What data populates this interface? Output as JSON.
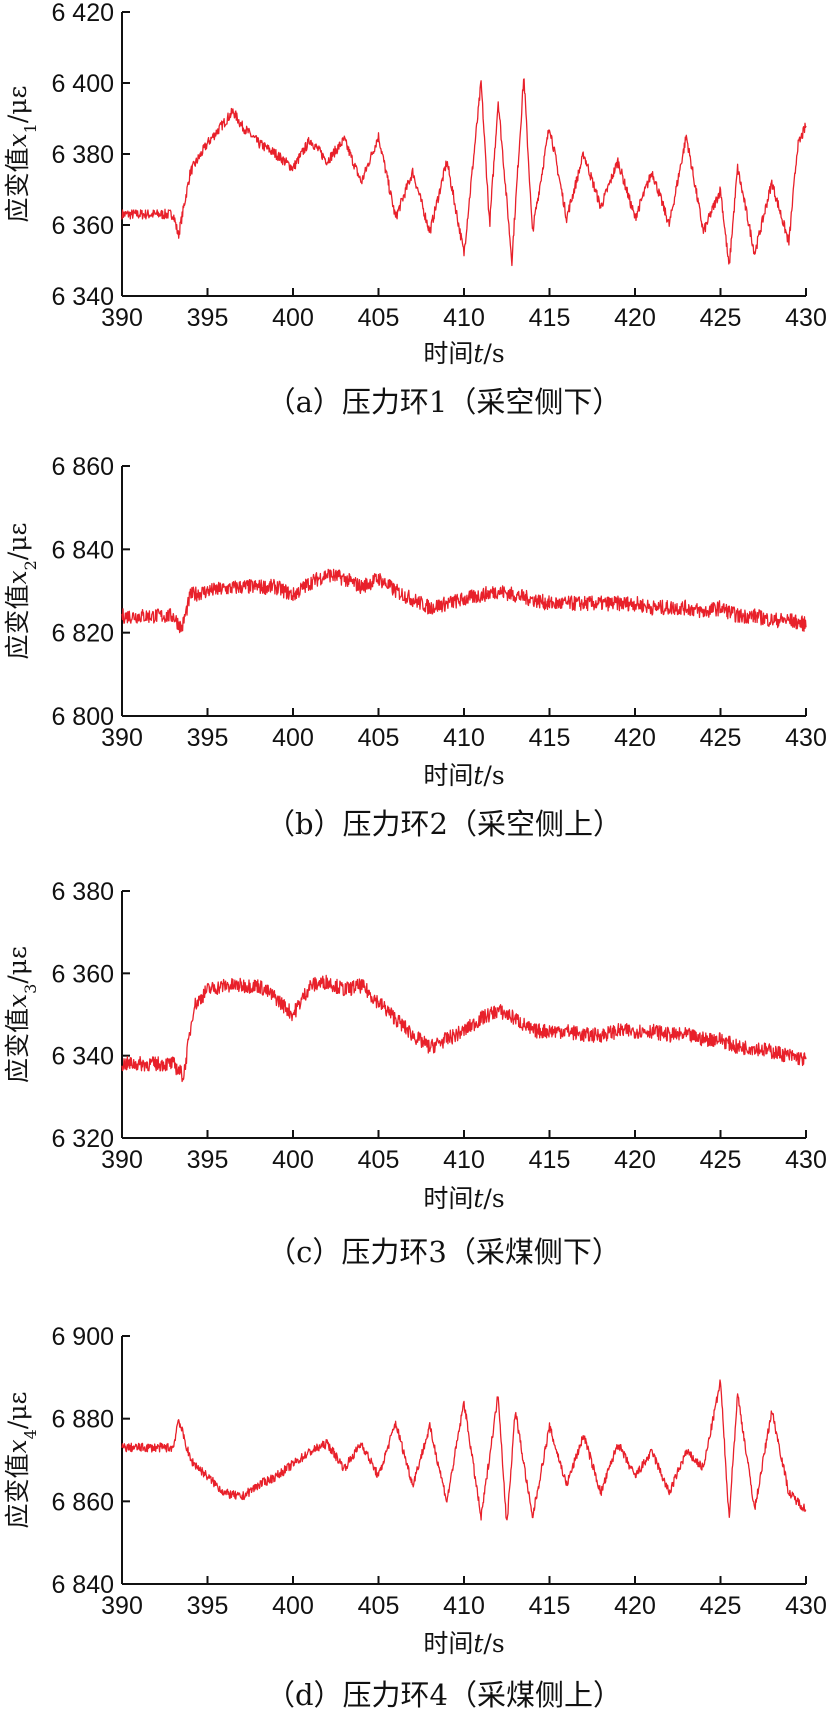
{
  "style": {
    "line_color": "#e8202a",
    "axis_color": "#111111"
  },
  "chart_data": [
    {
      "type": "line",
      "panel": "a",
      "caption": "（a）压力环1（采空侧下）",
      "xlabel": "时间t/s",
      "ylabel": "应变值x1/με",
      "xlim": [
        390,
        430
      ],
      "ylim": [
        6340,
        6420
      ],
      "xticks": [
        "390",
        "395",
        "400",
        "405",
        "410",
        "415",
        "420",
        "425",
        "430"
      ],
      "yticks": [
        "6 340",
        "6 360",
        "6 380",
        "6 400",
        "6 420"
      ],
      "series": [
        {
          "x": [
            390,
            393,
            393.3,
            394,
            395,
            396,
            396.5,
            397,
            398,
            399,
            400,
            401,
            402,
            403,
            404,
            405,
            406,
            407,
            408,
            409,
            410,
            411,
            411.5,
            412,
            412.8,
            413.5,
            414,
            415,
            416,
            417,
            418,
            419,
            420,
            421,
            422,
            423,
            424,
            425,
            425.5,
            426,
            427,
            428,
            429,
            429.5,
            430
          ],
          "y": [
            6363,
            6363,
            6357,
            6375,
            6383,
            6389,
            6392,
            6388,
            6383,
            6380,
            6376,
            6384,
            6378,
            6384,
            6372,
            6385,
            6362,
            6375,
            6358,
            6378,
            6352,
            6400,
            6360,
            6395,
            6350,
            6402,
            6358,
            6388,
            6362,
            6380,
            6365,
            6378,
            6362,
            6375,
            6360,
            6385,
            6358,
            6370,
            6348,
            6376,
            6352,
            6372,
            6355,
            6382,
            6388
          ]
        }
      ]
    },
    {
      "type": "line",
      "panel": "b",
      "caption": "（b）压力环2（采空侧上）",
      "xlabel": "时间t/s",
      "ylabel": "应变值x2/με",
      "xlim": [
        390,
        430
      ],
      "ylim": [
        6800,
        6860
      ],
      "xticks": [
        "390",
        "395",
        "400",
        "405",
        "410",
        "415",
        "420",
        "425",
        "430"
      ],
      "yticks": [
        "6 800",
        "6 820",
        "6 840",
        "6 860"
      ],
      "series": [
        {
          "x": [
            390,
            393,
            393.5,
            394,
            395,
            397,
            399,
            400,
            401,
            402,
            403,
            404,
            405,
            406,
            407,
            408,
            409,
            410,
            411,
            412,
            413,
            414,
            415,
            416,
            417,
            418,
            419,
            420,
            421,
            422,
            423,
            424,
            425,
            426,
            427,
            428,
            429,
            430
          ],
          "y": [
            6824,
            6824,
            6821,
            6829,
            6830,
            6831,
            6831,
            6829,
            6832,
            6834,
            6833,
            6831,
            6833,
            6830,
            6828,
            6826,
            6827,
            6828,
            6829,
            6830,
            6829,
            6828,
            6827,
            6827,
            6827,
            6827,
            6827,
            6827,
            6826,
            6826,
            6826,
            6825,
            6826,
            6824,
            6824,
            6823,
            6823,
            6822
          ]
        }
      ]
    },
    {
      "type": "line",
      "panel": "c",
      "caption": "（c）压力环3（采煤侧下）",
      "xlabel": "时间t/s",
      "ylabel": "应变值x3/με",
      "xlim": [
        390,
        430
      ],
      "ylim": [
        6320,
        6380
      ],
      "xticks": [
        "390",
        "395",
        "400",
        "405",
        "410",
        "415",
        "420",
        "425",
        "430"
      ],
      "yticks": [
        "6 320",
        "6 340",
        "6 360",
        "6 380"
      ],
      "series": [
        {
          "x": [
            390,
            393,
            393.6,
            394.2,
            395,
            396,
            397,
            398,
            399,
            400,
            401,
            402,
            403,
            404,
            405,
            406,
            407,
            408,
            409,
            410,
            411,
            412,
            413,
            414,
            415,
            416,
            417,
            418,
            419,
            420,
            421,
            422,
            423,
            424,
            425,
            426,
            427,
            428,
            429,
            430
          ],
          "y": [
            6338,
            6338,
            6335,
            6352,
            6356,
            6357,
            6357,
            6357,
            6354,
            6350,
            6357,
            6358,
            6356,
            6357,
            6353,
            6349,
            6345,
            6342,
            6344,
            6346,
            6349,
            6351,
            6349,
            6346,
            6346,
            6346,
            6345,
            6345,
            6346,
            6346,
            6346,
            6345,
            6345,
            6344,
            6344,
            6342,
            6342,
            6341,
            6340,
            6339
          ]
        }
      ]
    },
    {
      "type": "line",
      "panel": "d",
      "caption": "（d）压力环4（采煤侧上）",
      "xlabel": "时间t/s",
      "ylabel": "应变值x4/με",
      "xlim": [
        390,
        430
      ],
      "ylim": [
        6840,
        6900
      ],
      "xticks": [
        "390",
        "395",
        "400",
        "405",
        "410",
        "415",
        "420",
        "425",
        "430"
      ],
      "yticks": [
        "6 840",
        "6 860",
        "6 880",
        "6 900"
      ],
      "series": [
        {
          "x": [
            390,
            393,
            393.3,
            394,
            395,
            396,
            397,
            398,
            399,
            400,
            401,
            402,
            403,
            404,
            405,
            406,
            407,
            408,
            409,
            410,
            411,
            412,
            412.5,
            413,
            414,
            415,
            416,
            417,
            418,
            419,
            420,
            421,
            422,
            423,
            424,
            425,
            425.5,
            426,
            427,
            428,
            429,
            430
          ],
          "y": [
            6873,
            6873,
            6880,
            6870,
            6866,
            6862,
            6861,
            6864,
            6866,
            6869,
            6872,
            6874,
            6868,
            6874,
            6866,
            6879,
            6864,
            6878,
            6860,
            6884,
            6856,
            6886,
            6854,
            6882,
            6856,
            6878,
            6864,
            6876,
            6862,
            6874,
            6866,
            6872,
            6862,
            6872,
            6868,
            6889,
            6856,
            6886,
            6858,
            6882,
            6862,
            6858
          ]
        }
      ]
    }
  ]
}
